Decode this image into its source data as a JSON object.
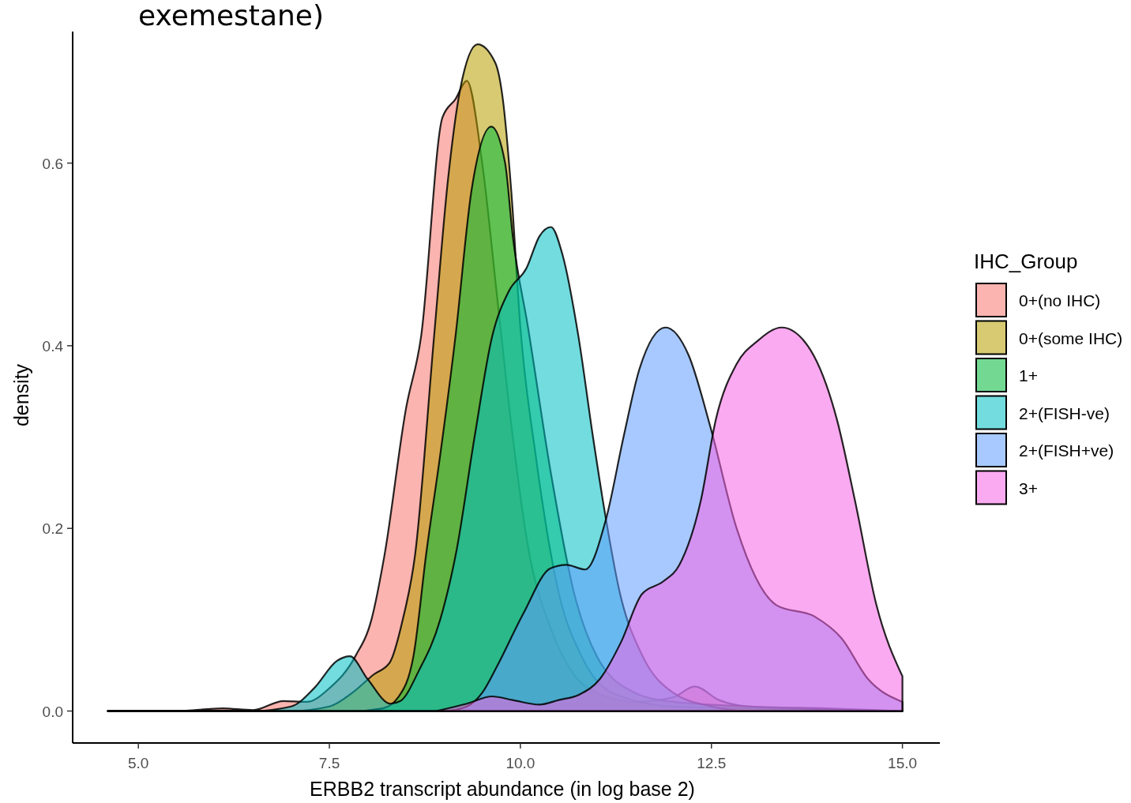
{
  "chart_data": {
    "type": "area",
    "title": "exemestane)",
    "xlabel": "ERBB2 transcript abundance (in log base 2)",
    "ylabel": "density",
    "legend_title": "IHC_Group",
    "legend": "right",
    "grid": false,
    "xlim": [
      4.14,
      15.49
    ],
    "ylim": [
      -0.035,
      0.744
    ],
    "xticks": [
      {
        "value": 5,
        "label": "5.0"
      },
      {
        "value": 7.5,
        "label": "7.5"
      },
      {
        "value": 10,
        "label": "10.0"
      },
      {
        "value": 12.5,
        "label": "12.5"
      },
      {
        "value": 15,
        "label": "15.0"
      }
    ],
    "yticks": [
      {
        "value": 0,
        "label": "0.0"
      },
      {
        "value": 0.2,
        "label": "0.2"
      },
      {
        "value": 0.4,
        "label": "0.4"
      },
      {
        "value": 0.6,
        "label": "0.6"
      }
    ],
    "series": [
      {
        "name": "0+(no IHC)",
        "color": "#f8766d",
        "x": [
          4.6,
          5.5,
          6.1,
          6.5,
          6.9,
          7.2,
          7.5,
          7.84,
          8.05,
          8.22,
          8.5,
          8.7,
          8.98,
          9.15,
          9.3,
          9.5,
          9.7,
          9.9,
          10.1,
          10.4,
          10.7,
          11.0,
          11.5,
          12.0,
          12.28,
          12.6,
          13.0,
          14.0,
          15.0
        ],
        "values": [
          0,
          0,
          0.003,
          0.001,
          0.011,
          0.01,
          0.025,
          0.06,
          0.1,
          0.17,
          0.33,
          0.41,
          0.65,
          0.67,
          0.69,
          0.6,
          0.45,
          0.3,
          0.18,
          0.09,
          0.04,
          0.02,
          0.01,
          0.015,
          0.027,
          0.012,
          0.005,
          0.003,
          0
        ]
      },
      {
        "name": "0+(some IHC)",
        "color": "#b79f00",
        "x": [
          4.6,
          7.0,
          7.5,
          7.8,
          8.08,
          8.29,
          8.46,
          8.62,
          8.87,
          9.05,
          9.21,
          9.44,
          9.67,
          9.77,
          9.88,
          10.0,
          10.2,
          10.5,
          10.8,
          11.2,
          12.0,
          13.0,
          15.0
        ],
        "values": [
          0,
          0,
          0.005,
          0.02,
          0.04,
          0.053,
          0.1,
          0.17,
          0.41,
          0.58,
          0.68,
          0.73,
          0.71,
          0.67,
          0.57,
          0.42,
          0.28,
          0.13,
          0.06,
          0.02,
          0.005,
          0.003,
          0
        ]
      },
      {
        "name": "1+",
        "color": "#00ba38",
        "x": [
          4.6,
          7.8,
          8.2,
          8.4,
          8.6,
          8.77,
          8.95,
          9.15,
          9.36,
          9.62,
          9.8,
          9.9,
          10.1,
          10.4,
          10.7,
          11.0,
          11.5,
          12.0,
          13.0,
          15.0
        ],
        "values": [
          0,
          0,
          0.003,
          0.015,
          0.06,
          0.174,
          0.28,
          0.41,
          0.57,
          0.64,
          0.6,
          0.52,
          0.42,
          0.26,
          0.13,
          0.06,
          0.02,
          0.01,
          0.005,
          0
        ]
      },
      {
        "name": "2+(FISH-ve)",
        "color": "#00bfc4",
        "x": [
          4.6,
          6.5,
          7.0,
          7.3,
          7.6,
          7.77,
          8.0,
          8.3,
          8.43,
          8.67,
          8.95,
          9.16,
          9.4,
          9.63,
          9.85,
          10.08,
          10.25,
          10.4,
          10.55,
          10.76,
          10.95,
          11.1,
          11.3,
          11.6,
          12.0,
          12.5,
          13.0,
          15.0
        ],
        "values": [
          0,
          0,
          0.005,
          0.025,
          0.055,
          0.06,
          0.035,
          0.008,
          0.011,
          0.044,
          0.1,
          0.174,
          0.3,
          0.41,
          0.46,
          0.485,
          0.52,
          0.53,
          0.5,
          0.41,
          0.3,
          0.22,
          0.13,
          0.06,
          0.02,
          0.005,
          0,
          0
        ]
      },
      {
        "name": "2+(FISH+ve)",
        "color": "#619cff",
        "x": [
          4.6,
          9.0,
          9.3,
          9.5,
          9.7,
          10.04,
          10.39,
          10.6,
          10.85,
          11.12,
          11.35,
          11.56,
          11.9,
          12.2,
          12.49,
          12.83,
          13.35,
          13.86,
          14.2,
          14.55,
          15.0
        ],
        "values": [
          0,
          0,
          0.005,
          0.02,
          0.05,
          0.107,
          0.156,
          0.16,
          0.155,
          0.21,
          0.3,
          0.375,
          0.42,
          0.39,
          0.31,
          0.2,
          0.116,
          0.103,
          0.08,
          0.035,
          0.01
        ]
      },
      {
        "name": "3+",
        "color": "#f564e3",
        "x": [
          8.9,
          9.3,
          9.63,
          9.9,
          10.25,
          10.5,
          10.77,
          11.04,
          11.32,
          11.59,
          11.87,
          12.08,
          12.36,
          12.56,
          12.83,
          13.1,
          13.42,
          13.76,
          14.14,
          14.38,
          14.66,
          15.0
        ],
        "values": [
          0,
          0.008,
          0.016,
          0.012,
          0.007,
          0.012,
          0.018,
          0.035,
          0.076,
          0.128,
          0.142,
          0.16,
          0.23,
          0.32,
          0.38,
          0.405,
          0.42,
          0.4,
          0.32,
          0.23,
          0.116,
          0.038
        ]
      }
    ]
  }
}
